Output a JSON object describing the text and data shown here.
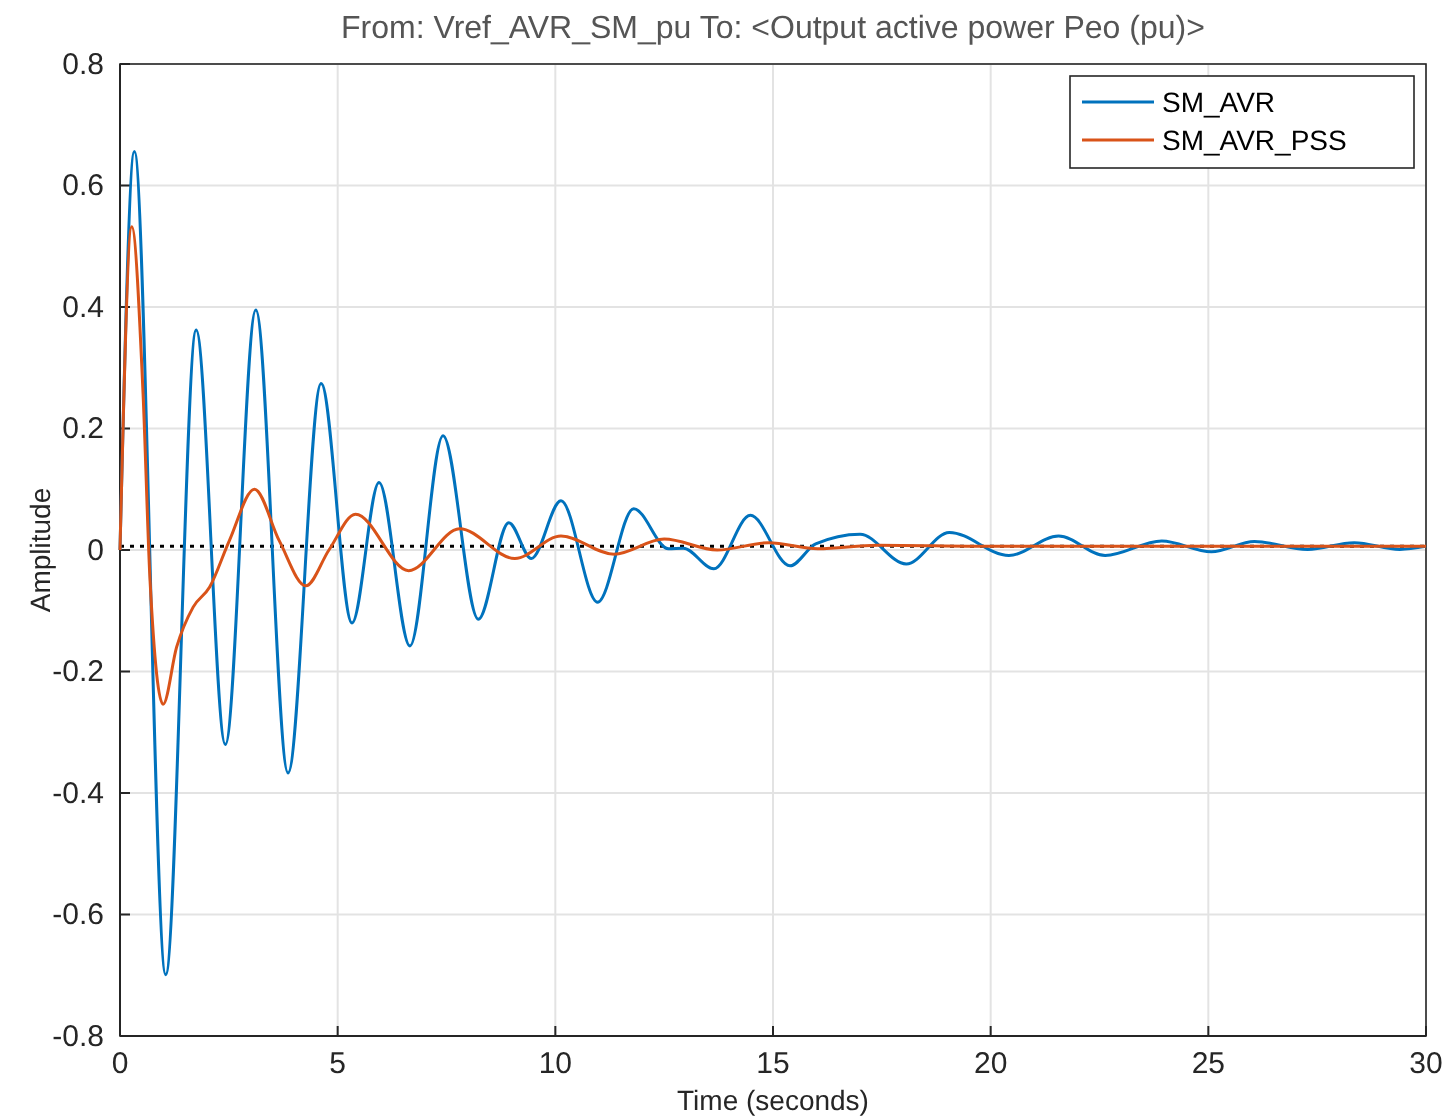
{
  "chart_data": {
    "type": "line",
    "title": "From: Vref_AVR_SM_pu  To: <Output active power Peo (pu)>",
    "xlabel": "Time (seconds)",
    "ylabel": "Amplitude",
    "xlim": [
      0,
      30
    ],
    "ylim": [
      -0.8,
      0.8
    ],
    "xticks": [
      0,
      5,
      10,
      15,
      20,
      25,
      30
    ],
    "yticks": [
      -0.8,
      -0.6,
      -0.4,
      -0.2,
      0,
      0.2,
      0.4,
      0.6,
      0.8
    ],
    "grid": true,
    "legend": "top right",
    "line_style": "solid",
    "ref_lines": [
      {
        "axis": "y",
        "value": 0.006,
        "color": "#000000",
        "line_style": "dotted"
      }
    ],
    "series": [
      {
        "name": "SM_AVR",
        "color": "#0072bd",
        "x": [
          0,
          0.33,
          1.05,
          1.75,
          2.42,
          3.12,
          3.86,
          4.62,
          5.33,
          5.95,
          6.66,
          7.42,
          8.23,
          8.93,
          9.45,
          10.13,
          10.97,
          11.8,
          12.6,
          12.94,
          13.64,
          14.48,
          15.39,
          15.98,
          17.0,
          18.06,
          19.05,
          20.42,
          21.56,
          22.63,
          23.93,
          25.07,
          26.06,
          27.28,
          28.35,
          29.4,
          30
        ],
        "values": [
          0,
          0.656,
          -0.699,
          0.362,
          -0.32,
          0.395,
          -0.367,
          0.274,
          -0.12,
          0.111,
          -0.158,
          0.188,
          -0.114,
          0.045,
          -0.014,
          0.081,
          -0.086,
          0.068,
          0.002,
          0.003,
          -0.031,
          0.057,
          -0.026,
          0.01,
          0.026,
          -0.023,
          0.029,
          -0.009,
          0.023,
          -0.009,
          0.015,
          -0.003,
          0.014,
          0.001,
          0.012,
          0.001,
          0.006
        ]
      },
      {
        "name": "SM_AVR_PSS",
        "color": "#d95319",
        "x": [
          0,
          0.27,
          0.53,
          0.69,
          0.99,
          1.3,
          1.68,
          2.06,
          2.51,
          3.09,
          3.66,
          4.27,
          4.8,
          5.41,
          6.63,
          7.8,
          9.07,
          10.13,
          11.35,
          12.5,
          13.72,
          14.9,
          16.03,
          17.4,
          20,
          25,
          30
        ],
        "values": [
          0,
          0.532,
          0.257,
          -0.05,
          -0.254,
          -0.16,
          -0.094,
          -0.061,
          0.015,
          0.1,
          0.015,
          -0.059,
          0,
          0.059,
          -0.034,
          0.035,
          -0.014,
          0.023,
          -0.007,
          0.018,
          0,
          0.012,
          0.002,
          0.008,
          0.006,
          0.006,
          0.006
        ]
      }
    ]
  }
}
